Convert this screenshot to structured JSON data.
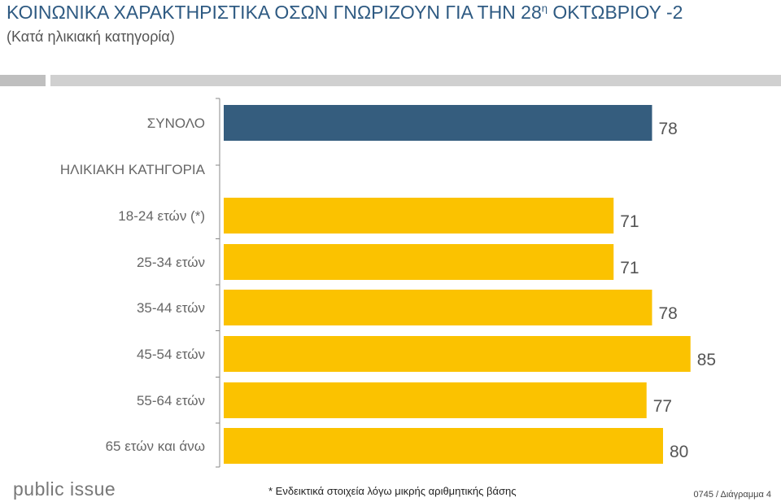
{
  "header": {
    "title": "ΚΟΙΝΩΝΙΚΑ ΧΑΡΑΚΤΗΡΙΣΤΙΚΑ ΟΣΩΝ ΓΝΩΡΙΖΟΥΝ ΓΙΑ ΤΗΝ 28",
    "title_sup": "η",
    "title_end": " ΟΚΤΩΒΡΙΟΥ -2",
    "subtitle": "(Κατά ηλικιακή κατηγορία)"
  },
  "chart_data": {
    "type": "bar",
    "orientation": "horizontal",
    "xlim": [
      0,
      100
    ],
    "grid": false,
    "legend": "none",
    "section_label": "ΗΛΙΚΙΑΚΗ ΚΑΤΗΓΟΡΙΑ",
    "categories": [
      "ΣΥΝΟΛΟ",
      "18-24 ετών (*)",
      "25-34 ετών",
      "35-44 ετών",
      "45-54 ετών",
      "55-64 ετών",
      "65 ετών και άνω"
    ],
    "values": [
      78,
      71,
      71,
      78,
      85,
      77,
      80
    ],
    "colors": [
      "#355d7e",
      "#fbc200",
      "#fbc200",
      "#fbc200",
      "#fbc200",
      "#fbc200",
      "#fbc200"
    ]
  },
  "footer": {
    "brand": "public issue",
    "footnote": "* Ενδεικτικά στοιχεία λόγω μικρής αριθμητικής βάσης",
    "page_ref": "0745 / Διάγραμμα 4"
  }
}
